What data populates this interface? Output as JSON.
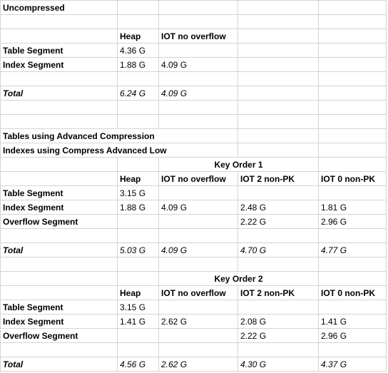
{
  "rows": [
    [
      {
        "t": "Uncompressed",
        "s": "b"
      },
      null,
      null,
      null,
      null
    ],
    [
      null,
      null,
      null,
      null,
      null
    ],
    [
      null,
      {
        "t": "Heap",
        "s": "b"
      },
      {
        "t": "IOT no overflow",
        "s": "b"
      },
      null,
      null
    ],
    [
      {
        "t": "Table Segment",
        "s": "b"
      },
      {
        "t": "4.36 G"
      },
      null,
      null,
      null
    ],
    [
      {
        "t": "Index Segment",
        "s": "b"
      },
      {
        "t": "1.88 G"
      },
      {
        "t": "4.09 G"
      },
      null,
      null
    ],
    [
      null,
      null,
      null,
      null,
      null
    ],
    [
      {
        "t": "Total",
        "s": "bi"
      },
      {
        "t": "6.24 G",
        "s": "i"
      },
      {
        "t": "4.09 G",
        "s": "i"
      },
      null,
      null
    ],
    [
      null,
      null,
      null,
      null,
      null
    ],
    [
      null,
      null,
      null,
      null,
      null
    ],
    [
      {
        "t": "Tables using Advanced Compression",
        "s": "b",
        "span": 3
      },
      null,
      null,
      null,
      null
    ],
    [
      {
        "t": "Indexes using Compress Advanced Low",
        "s": "b",
        "span": 3
      },
      null,
      null,
      null,
      null
    ],
    [
      null,
      null,
      {
        "t": "Key Order 1",
        "s": "b",
        "span": 2,
        "center": true
      },
      null,
      null
    ],
    [
      null,
      {
        "t": "Heap",
        "s": "b"
      },
      {
        "t": "IOT no overflow",
        "s": "b"
      },
      {
        "t": "IOT 2 non-PK",
        "s": "b"
      },
      {
        "t": "IOT 0 non-PK",
        "s": "b"
      }
    ],
    [
      {
        "t": "Table Segment",
        "s": "b"
      },
      {
        "t": "3.15 G"
      },
      null,
      null,
      null
    ],
    [
      {
        "t": "Index Segment",
        "s": "b"
      },
      {
        "t": "1.88 G"
      },
      {
        "t": "4.09 G"
      },
      {
        "t": "2.48 G"
      },
      {
        "t": "1.81 G"
      }
    ],
    [
      {
        "t": "Overflow Segment",
        "s": "b"
      },
      null,
      null,
      {
        "t": "2.22 G"
      },
      {
        "t": "2.96 G"
      }
    ],
    [
      null,
      null,
      null,
      null,
      null
    ],
    [
      {
        "t": "Total",
        "s": "bi"
      },
      {
        "t": "5.03 G",
        "s": "i"
      },
      {
        "t": "4.09 G",
        "s": "i"
      },
      {
        "t": "4.70 G",
        "s": "i"
      },
      {
        "t": "4.77 G",
        "s": "i"
      }
    ],
    [
      null,
      null,
      null,
      null,
      null
    ],
    [
      null,
      null,
      {
        "t": "Key Order 2",
        "s": "b",
        "span": 2,
        "center": true
      },
      null,
      null
    ],
    [
      null,
      {
        "t": "Heap",
        "s": "b"
      },
      {
        "t": "IOT no overflow",
        "s": "b"
      },
      {
        "t": "IOT 2 non-PK",
        "s": "b"
      },
      {
        "t": "IOT 0 non-PK",
        "s": "b"
      }
    ],
    [
      {
        "t": "Table Segment",
        "s": "b"
      },
      {
        "t": "3.15 G"
      },
      null,
      null,
      null
    ],
    [
      {
        "t": "Index Segment",
        "s": "b"
      },
      {
        "t": "1.41 G"
      },
      {
        "t": "2.62 G"
      },
      {
        "t": "2.08 G"
      },
      {
        "t": "1.41 G"
      }
    ],
    [
      {
        "t": "Overflow Segment",
        "s": "b"
      },
      null,
      null,
      {
        "t": "2.22 G"
      },
      {
        "t": "2.96 G"
      }
    ],
    [
      null,
      null,
      null,
      null,
      null
    ],
    [
      {
        "t": "Total",
        "s": "bi"
      },
      {
        "t": "4.56 G",
        "s": "i"
      },
      {
        "t": "2.62 G",
        "s": "i"
      },
      {
        "t": "4.30 G",
        "s": "i"
      },
      {
        "t": "4.37 G",
        "s": "i"
      }
    ]
  ]
}
